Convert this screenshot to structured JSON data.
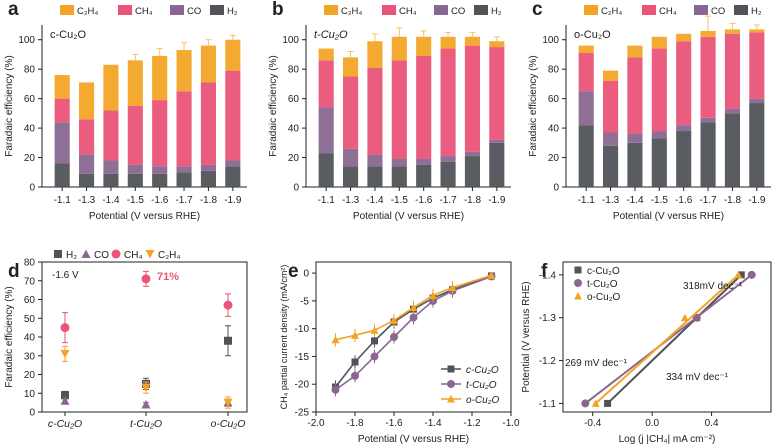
{
  "figure": {
    "caption_line": ""
  },
  "colors": {
    "h2": "#505358",
    "co": "#8a6791",
    "ch4": "#ea5478",
    "c2h4": "#f3a426",
    "error": "#f6c268"
  },
  "chart_data": [
    {
      "panel": "a",
      "type": "bar",
      "stacked": true,
      "title": "c-Cu2O",
      "title_display": "c-Cu₂O",
      "xlabel": "Potential (V versus RHE)",
      "ylabel": "Faradaic efficiency (%)",
      "categories": [
        "-1.1",
        "-1.3",
        "-1.4",
        "-1.5",
        "-1.6",
        "-1.7",
        "-1.8",
        "-1.9"
      ],
      "ylim": [
        0,
        110
      ],
      "yticks": [
        0,
        20,
        40,
        60,
        80,
        100
      ],
      "legend": [
        "C₂H₄",
        "CH₄",
        "CO",
        "H₂"
      ],
      "series": [
        {
          "name": "H2",
          "values": [
            16,
            9,
            9,
            9,
            9,
            10,
            11,
            14
          ]
        },
        {
          "name": "CO",
          "values": [
            28,
            13,
            9,
            6,
            5,
            4,
            4,
            4
          ]
        },
        {
          "name": "CH4",
          "values": [
            16,
            24,
            34,
            40,
            45,
            51,
            56,
            61
          ]
        },
        {
          "name": "C2H4",
          "values": [
            16,
            25,
            31,
            31,
            30,
            28,
            25,
            21
          ]
        }
      ],
      "errors": [
        null,
        null,
        null,
        4,
        5,
        5,
        4,
        3
      ]
    },
    {
      "panel": "b",
      "type": "bar",
      "stacked": true,
      "title": "t-Cu2O",
      "title_display": "t-Cu₂O",
      "xlabel": "Potential (V versus RHE)",
      "ylabel": "Faradaic efficiency (%)",
      "categories": [
        "-1.1",
        "-1.3",
        "-1.4",
        "-1.5",
        "-1.6",
        "-1.7",
        "-1.8",
        "-1.9"
      ],
      "ylim": [
        0,
        110
      ],
      "yticks": [
        0,
        20,
        40,
        60,
        80,
        100
      ],
      "legend": [
        "C₂H₄",
        "CH₄",
        "CO",
        "H₂"
      ],
      "series": [
        {
          "name": "H2",
          "values": [
            23,
            14,
            14,
            14,
            15,
            17,
            21,
            30
          ]
        },
        {
          "name": "CO",
          "values": [
            31,
            12,
            8,
            5,
            4,
            4,
            3,
            2
          ]
        },
        {
          "name": "CH4",
          "values": [
            32,
            49,
            59,
            67,
            70,
            73,
            72,
            63
          ]
        },
        {
          "name": "C2H4",
          "values": [
            8,
            13,
            18,
            16,
            13,
            8,
            6,
            4
          ]
        }
      ],
      "errors": [
        null,
        4,
        5,
        6,
        4,
        3,
        3,
        3
      ]
    },
    {
      "panel": "c",
      "type": "bar",
      "stacked": true,
      "title": "o-Cu2O",
      "title_display": "o-Cu₂O",
      "xlabel": "Potential (V versus RHE)",
      "ylabel": "Faradaic efficiency (%)",
      "categories": [
        "-1.1",
        "-1.3",
        "-1.4",
        "-1.5",
        "-1.6",
        "-1.7",
        "-1.8",
        "-1.9"
      ],
      "ylim": [
        0,
        110
      ],
      "yticks": [
        0,
        20,
        40,
        60,
        80,
        100
      ],
      "legend": [
        "C₂H₄",
        "CH₄",
        "CO",
        "H₂"
      ],
      "series": [
        {
          "name": "H2",
          "values": [
            42,
            28,
            30,
            33,
            38,
            44,
            50,
            57
          ]
        },
        {
          "name": "CO",
          "values": [
            23,
            9,
            6,
            5,
            4,
            3,
            3,
            3
          ]
        },
        {
          "name": "CH4",
          "values": [
            26,
            35,
            52,
            56,
            57,
            55,
            51,
            45
          ]
        },
        {
          "name": "C2H4",
          "values": [
            5,
            7,
            8,
            8,
            5,
            4,
            3,
            2
          ]
        }
      ],
      "errors": [
        null,
        null,
        null,
        null,
        null,
        10,
        4,
        3
      ]
    },
    {
      "panel": "d",
      "type": "scatter",
      "annotation": "-1.6 V",
      "highlight": "71%",
      "xlabel": "",
      "ylabel": "Faradaic efficiency (%)",
      "categories": [
        "c-Cu2O",
        "t-Cu2O",
        "o-Cu2O"
      ],
      "category_labels": [
        "c-Cu₂O",
        "t-Cu₂O",
        "o-Cu₂O"
      ],
      "ylim": [
        0,
        80
      ],
      "yticks": [
        0,
        10,
        20,
        30,
        40,
        50,
        60,
        70,
        80
      ],
      "legend": [
        "H₂",
        "CO",
        "CH₄",
        "C₂H₄"
      ],
      "series": [
        {
          "name": "H2",
          "values": [
            9,
            15,
            38
          ],
          "errors": [
            2,
            3,
            8
          ]
        },
        {
          "name": "CO",
          "values": [
            6,
            4,
            5
          ],
          "errors": [
            1,
            1,
            1
          ]
        },
        {
          "name": "CH4",
          "values": [
            45,
            71,
            57
          ],
          "errors": [
            8,
            4,
            6
          ]
        },
        {
          "name": "C2H4",
          "values": [
            31,
            13,
            5
          ],
          "errors": [
            4,
            3,
            3
          ]
        }
      ]
    },
    {
      "panel": "e",
      "type": "line",
      "xlabel": "Potential (V versus RHE)",
      "ylabel": "CH₄ partial current density (mA/cm²)",
      "xlim": [
        -2.0,
        -1.0
      ],
      "ylim": [
        -25,
        2
      ],
      "xticks": [
        -2.0,
        -1.8,
        -1.6,
        -1.4,
        -1.2,
        -1.0
      ],
      "yticks": [
        0,
        -5,
        -10,
        -15,
        -20,
        -25
      ],
      "x": [
        -1.9,
        -1.8,
        -1.7,
        -1.6,
        -1.5,
        -1.4,
        -1.3,
        -1.1
      ],
      "series": [
        {
          "name": "c-Cu2O",
          "label": "c-Cu₂O",
          "values": [
            -20.5,
            -16,
            -12.2,
            -8.8,
            -6.5,
            -4.5,
            -3,
            -0.5
          ]
        },
        {
          "name": "t-Cu2O",
          "label": "t-Cu₂O",
          "values": [
            -21,
            -18.5,
            -15,
            -11.5,
            -8,
            -5,
            -3.2,
            -0.6
          ]
        },
        {
          "name": "o-Cu2O",
          "label": "o-Cu₂O",
          "values": [
            -12,
            -11.2,
            -10.3,
            -8.5,
            -6.2,
            -4,
            -2.6,
            -0.4
          ]
        }
      ]
    },
    {
      "panel": "f",
      "type": "scatter",
      "fit": "linear",
      "xlabel": "Log (j |CH₄| mA cm⁻²)",
      "ylabel": "Potential (V versus RHE)",
      "xlim": [
        -0.6,
        0.8
      ],
      "ylim": [
        -1.43,
        -1.08
      ],
      "xticks": [
        -0.4,
        0.0,
        0.4
      ],
      "yticks": [
        -1.4,
        -1.3,
        -1.2,
        -1.1
      ],
      "annotations": [
        "318mV dec⁻¹",
        "269 mV dec⁻¹",
        "334 mV dec⁻¹"
      ],
      "series": [
        {
          "name": "c-Cu2O",
          "label": "c-Cu₂O",
          "x": [
            -0.3,
            0.3,
            0.6
          ],
          "y": [
            -1.1,
            -1.3,
            -1.4
          ]
        },
        {
          "name": "t-Cu2O",
          "label": "t-Cu₂O",
          "x": [
            -0.45,
            0.3,
            0.67
          ],
          "y": [
            -1.1,
            -1.3,
            -1.4
          ]
        },
        {
          "name": "o-Cu2O",
          "label": "o-Cu₂O",
          "x": [
            -0.38,
            0.22,
            0.58
          ],
          "y": [
            -1.1,
            -1.3,
            -1.4
          ]
        }
      ]
    }
  ]
}
